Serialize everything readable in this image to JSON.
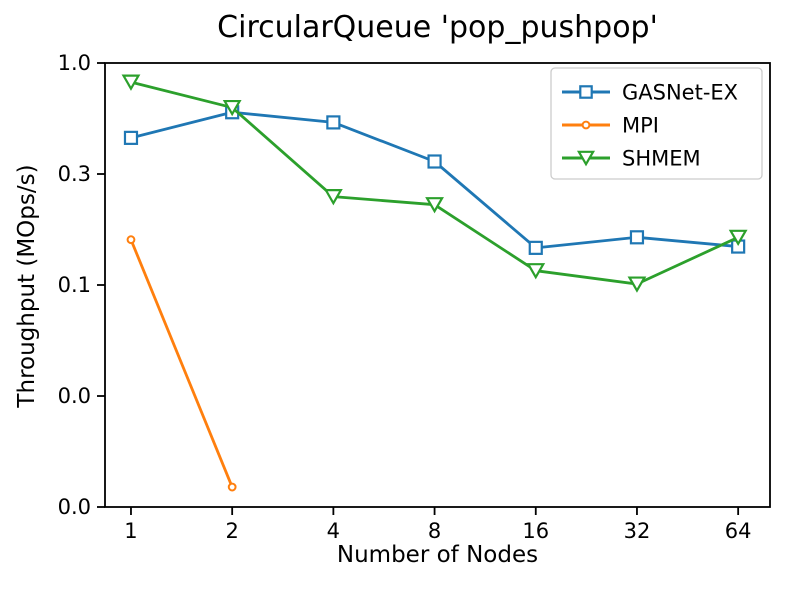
{
  "chart_data": {
    "type": "line",
    "title": "CircularQueue 'pop_pushpop'",
    "xlabel": "Number of Nodes",
    "ylabel": "Throughput (MOps/s)",
    "x_scale": "log2",
    "y_scale": "log10",
    "xlim": [
      0.837,
      79.6
    ],
    "ylim": [
      0.01,
      1.0
    ],
    "grid": false,
    "x_ticks": [
      1,
      2,
      4,
      8,
      16,
      32,
      64
    ],
    "x_tick_labels": [
      "1",
      "2",
      "4",
      "8",
      "16",
      "32",
      "64"
    ],
    "y_ticks": [
      1.0,
      0.3162,
      0.1,
      0.03162,
      0.01
    ],
    "y_tick_labels": [
      "1.0",
      "0.3",
      "0.1",
      "0.0",
      "0.0"
    ],
    "legend": {
      "position": "upper right",
      "entries": [
        "GASNet-EX",
        "MPI",
        "SHMEM"
      ],
      "border_color": "#cccccc",
      "background": "rgba(255,255,255,0.85)"
    },
    "series": [
      {
        "name": "GASNet-EX",
        "color": "#1f77b4",
        "marker": "square",
        "x": [
          1,
          2,
          4,
          8,
          16,
          32,
          64
        ],
        "y": [
          0.46,
          0.6,
          0.54,
          0.36,
          0.147,
          0.164,
          0.149
        ]
      },
      {
        "name": "MPI",
        "color": "#ff7f0e",
        "marker": "circle",
        "x": [
          1,
          2
        ],
        "y": [
          0.16,
          0.0123
        ]
      },
      {
        "name": "SHMEM",
        "color": "#2ca02c",
        "marker": "triangle-down",
        "x": [
          1,
          2,
          4,
          8,
          16,
          32,
          64
        ],
        "y": [
          0.82,
          0.63,
          0.25,
          0.23,
          0.116,
          0.101,
          0.164
        ]
      }
    ]
  }
}
